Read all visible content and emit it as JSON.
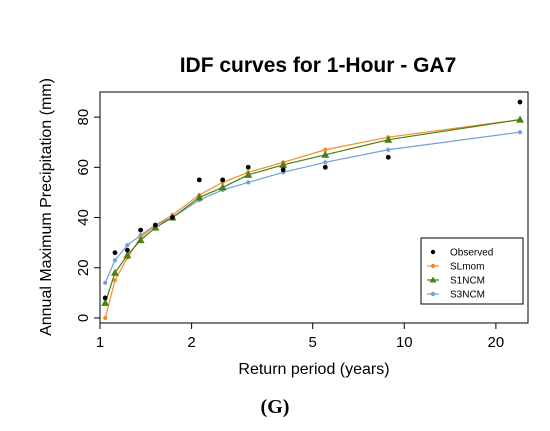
{
  "caption": "(G)",
  "chart_data": {
    "type": "line",
    "title": "IDF curves for 1-Hour - GA7",
    "xlabel": "Return period (years)",
    "ylabel": "Annual Maximum Precipitation (mm)",
    "xscale": "log",
    "xlim": [
      1.0,
      25.5
    ],
    "ylim": [
      -2,
      90
    ],
    "xticks": [
      1,
      2,
      5,
      10,
      20
    ],
    "xtick_labels": [
      "1",
      "2",
      "5",
      "10",
      "20"
    ],
    "yticks": [
      0,
      20,
      40,
      60,
      80
    ],
    "ytick_labels": [
      "0",
      "20",
      "40",
      "60",
      "80"
    ],
    "grid": false,
    "legend": {
      "position": "bottom-right",
      "entries": [
        "Observed",
        "SLmom",
        "S1NCM",
        "S3NCM"
      ]
    },
    "colors": {
      "Observed": "#000000",
      "SLmom": "#f28c28",
      "S1NCM": "#4a7f13",
      "S3NCM": "#6fa0dc"
    },
    "x": [
      1.04,
      1.12,
      1.23,
      1.36,
      1.52,
      1.73,
      2.12,
      2.53,
      3.07,
      4.0,
      5.5,
      8.86,
      24.0
    ],
    "series": [
      {
        "name": "Observed",
        "marker": "circle",
        "line": false,
        "values": [
          8,
          26,
          27,
          35,
          37,
          40,
          55,
          55,
          60,
          59,
          60,
          64,
          86
        ]
      },
      {
        "name": "SLmom",
        "marker": "circle",
        "line": true,
        "values": [
          0,
          15,
          24,
          32,
          37,
          41,
          49,
          54,
          58,
          62,
          67,
          72,
          79
        ]
      },
      {
        "name": "S1NCM",
        "marker": "triangle",
        "line": true,
        "values": [
          6,
          18,
          25,
          31,
          36,
          40,
          48,
          52,
          57,
          61,
          65,
          71,
          79
        ]
      },
      {
        "name": "S3NCM",
        "marker": "circle",
        "line": true,
        "values": [
          14,
          23,
          29,
          33,
          37,
          40,
          47,
          51,
          54,
          58,
          62,
          67,
          74
        ]
      }
    ]
  }
}
